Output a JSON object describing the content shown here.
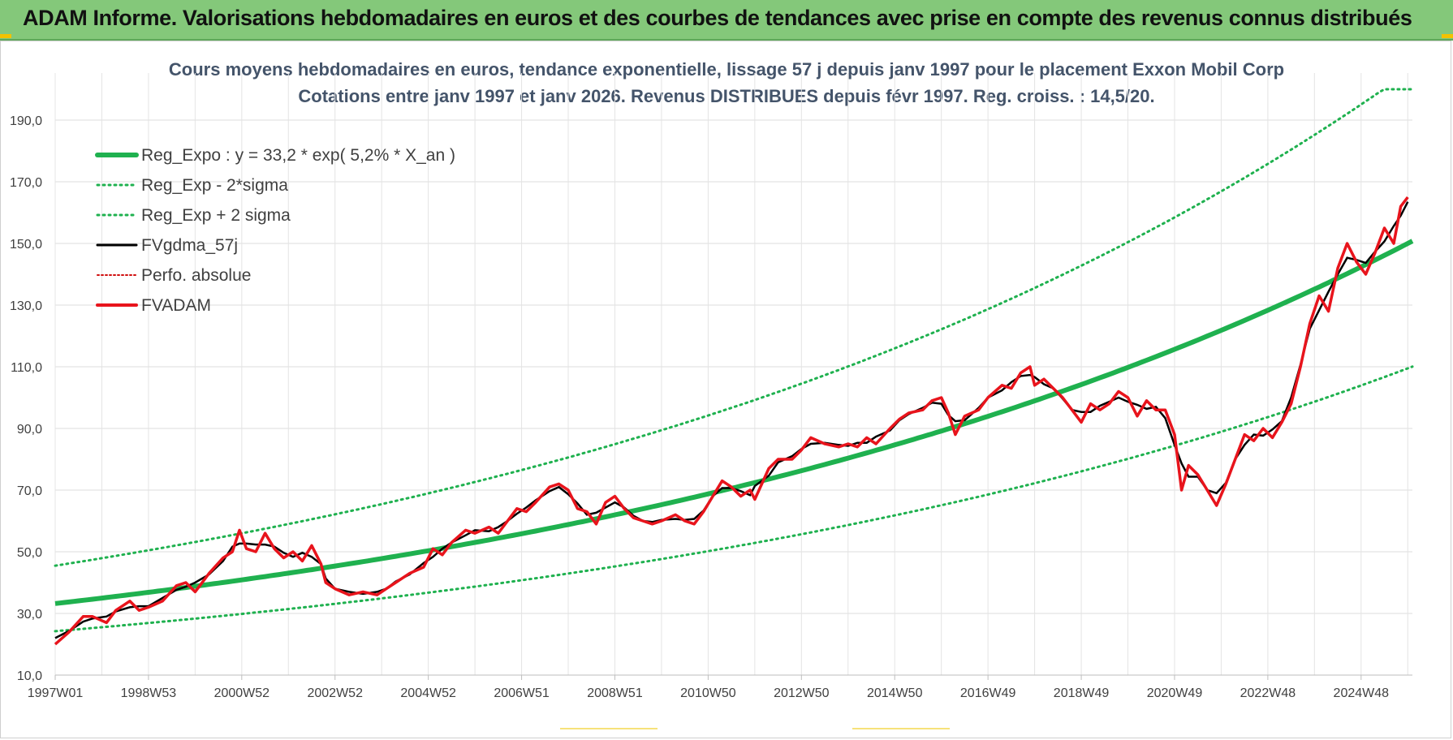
{
  "banner": {
    "title": "ADAM Informe. Valorisations hebdomadaires en euros et des courbes de tendances avec prise en compte des revenus connus distribués"
  },
  "chart_data": {
    "type": "line",
    "title_lines": [
      "Cours moyens hebdomadaires en euros, tendance exponentielle, lissage 57 j depuis janv 1997 pour le placement Exxon Mobil Corp",
      "Cotations entre janv 1997 et janv 2026. Revenus DISTRIBUES depuis févr 1997. Reg. croiss. : 14,5/20."
    ],
    "xlabel": "",
    "ylabel": "",
    "x_range": [
      1997.0,
      2026.1
    ],
    "ylim": [
      10,
      190
    ],
    "y_ticks": [
      "10,0",
      "30,0",
      "50,0",
      "70,0",
      "90,0",
      "110,0",
      "130,0",
      "150,0",
      "170,0",
      "190,0"
    ],
    "x_ticks": [
      "1997W01",
      "1998W53",
      "2000W52",
      "2002W52",
      "2004W52",
      "2006W51",
      "2008W51",
      "2010W50",
      "2012W50",
      "2014W50",
      "2016W49",
      "2018W49",
      "2020W49",
      "2022W48",
      "2024W48"
    ],
    "grid": true,
    "legend_position": "top-left",
    "regression": {
      "a": 33.2,
      "growth_pct": 5.2,
      "sigma_factor": 1.37,
      "clip_max": 200
    },
    "series": [
      {
        "name": "Reg_Expo : y = 33,2 * exp( 5,2% *  X_an )",
        "color": "#1fb14f",
        "style": "solid-thick"
      },
      {
        "name": "Reg_Exp - 2*sigma",
        "color": "#1fb14f",
        "style": "dotted"
      },
      {
        "name": "Reg_Exp + 2 sigma",
        "color": "#1fb14f",
        "style": "dotted"
      },
      {
        "name": "FVgdma_57j",
        "color": "#000000",
        "style": "solid"
      },
      {
        "name": "Perfo. absolue",
        "color": "#d01010",
        "style": "dotted"
      },
      {
        "name": "FVADAM",
        "color": "#e8141c",
        "style": "solid-thick",
        "points": [
          [
            1997.0,
            20
          ],
          [
            1997.3,
            24
          ],
          [
            1997.6,
            29
          ],
          [
            1997.8,
            29
          ],
          [
            1998.1,
            27
          ],
          [
            1998.3,
            31
          ],
          [
            1998.6,
            34
          ],
          [
            1998.8,
            31
          ],
          [
            1999.0,
            32
          ],
          [
            1999.3,
            34
          ],
          [
            1999.6,
            39
          ],
          [
            1999.8,
            40
          ],
          [
            2000.0,
            37
          ],
          [
            2000.3,
            43
          ],
          [
            2000.6,
            48
          ],
          [
            2000.8,
            50
          ],
          [
            2000.95,
            57
          ],
          [
            2001.1,
            51
          ],
          [
            2001.3,
            50
          ],
          [
            2001.5,
            56
          ],
          [
            2001.7,
            51
          ],
          [
            2001.9,
            48
          ],
          [
            2002.1,
            50
          ],
          [
            2002.3,
            47
          ],
          [
            2002.5,
            52
          ],
          [
            2002.7,
            46
          ],
          [
            2002.8,
            40
          ],
          [
            2003.0,
            38
          ],
          [
            2003.3,
            36
          ],
          [
            2003.6,
            37
          ],
          [
            2003.9,
            36
          ],
          [
            2004.1,
            38
          ],
          [
            2004.3,
            40
          ],
          [
            2004.6,
            43
          ],
          [
            2004.9,
            45
          ],
          [
            2005.1,
            51
          ],
          [
            2005.3,
            49
          ],
          [
            2005.5,
            53
          ],
          [
            2005.8,
            57
          ],
          [
            2006.0,
            56
          ],
          [
            2006.3,
            58
          ],
          [
            2006.5,
            56
          ],
          [
            2006.7,
            60
          ],
          [
            2006.9,
            64
          ],
          [
            2007.1,
            63
          ],
          [
            2007.3,
            66
          ],
          [
            2007.6,
            71
          ],
          [
            2007.8,
            72
          ],
          [
            2008.0,
            70
          ],
          [
            2008.2,
            64
          ],
          [
            2008.4,
            63
          ],
          [
            2008.6,
            59
          ],
          [
            2008.8,
            66
          ],
          [
            2009.0,
            68
          ],
          [
            2009.2,
            64
          ],
          [
            2009.4,
            61
          ],
          [
            2009.6,
            60
          ],
          [
            2009.8,
            59
          ],
          [
            2010.0,
            60
          ],
          [
            2010.3,
            62
          ],
          [
            2010.5,
            60
          ],
          [
            2010.7,
            59
          ],
          [
            2010.9,
            63
          ],
          [
            2011.1,
            68
          ],
          [
            2011.3,
            73
          ],
          [
            2011.5,
            71
          ],
          [
            2011.7,
            68
          ],
          [
            2011.9,
            70
          ],
          [
            2012.0,
            67
          ],
          [
            2012.3,
            77
          ],
          [
            2012.5,
            80
          ],
          [
            2012.8,
            80
          ],
          [
            2013.0,
            83
          ],
          [
            2013.2,
            87
          ],
          [
            2013.5,
            85
          ],
          [
            2013.8,
            84
          ],
          [
            2014.0,
            85
          ],
          [
            2014.2,
            84
          ],
          [
            2014.4,
            87
          ],
          [
            2014.6,
            85
          ],
          [
            2014.9,
            90
          ],
          [
            2015.1,
            93
          ],
          [
            2015.3,
            95
          ],
          [
            2015.6,
            96
          ],
          [
            2015.8,
            99
          ],
          [
            2016.0,
            100
          ],
          [
            2016.15,
            95
          ],
          [
            2016.3,
            88
          ],
          [
            2016.5,
            94
          ],
          [
            2016.8,
            96
          ],
          [
            2017.0,
            100
          ],
          [
            2017.3,
            104
          ],
          [
            2017.5,
            103
          ],
          [
            2017.7,
            108
          ],
          [
            2017.9,
            110
          ],
          [
            2018.0,
            104
          ],
          [
            2018.2,
            106
          ],
          [
            2018.4,
            103
          ],
          [
            2018.6,
            100
          ],
          [
            2018.8,
            96
          ],
          [
            2019.0,
            92
          ],
          [
            2019.2,
            98
          ],
          [
            2019.4,
            96
          ],
          [
            2019.6,
            98
          ],
          [
            2019.8,
            102
          ],
          [
            2020.0,
            100
          ],
          [
            2020.2,
            94
          ],
          [
            2020.4,
            99
          ],
          [
            2020.6,
            96
          ],
          [
            2020.8,
            96
          ],
          [
            2021.0,
            88
          ],
          [
            2021.15,
            70
          ],
          [
            2021.3,
            78
          ],
          [
            2021.5,
            75
          ],
          [
            2021.7,
            70
          ],
          [
            2021.9,
            65
          ],
          [
            2022.1,
            72
          ],
          [
            2022.3,
            80
          ],
          [
            2022.5,
            88
          ],
          [
            2022.7,
            86
          ],
          [
            2022.9,
            90
          ],
          [
            2023.1,
            87
          ],
          [
            2023.3,
            92
          ],
          [
            2023.5,
            98
          ],
          [
            2023.7,
            110
          ],
          [
            2023.9,
            124
          ],
          [
            2024.1,
            133
          ],
          [
            2024.3,
            128
          ],
          [
            2024.5,
            142
          ],
          [
            2024.7,
            150
          ],
          [
            2024.9,
            144
          ],
          [
            2025.1,
            140
          ],
          [
            2025.3,
            147
          ],
          [
            2025.5,
            155
          ],
          [
            2025.7,
            150
          ],
          [
            2025.85,
            162
          ],
          [
            2026.0,
            165
          ]
        ]
      }
    ]
  }
}
